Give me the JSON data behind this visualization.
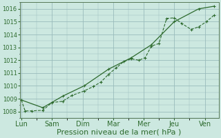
{
  "bg_color": "#cce8e0",
  "plot_bg_color": "#cce8e0",
  "grid_color": "#99bbbb",
  "line_color": "#2d6a2d",
  "xlabel": "Pression niveau de la mer( hPa )",
  "xlabel_fontsize": 8,
  "tick_labels": [
    "Lun",
    "Sam",
    "Dim",
    "Mar",
    "Mer",
    "Jeu",
    "Ven"
  ],
  "tick_positions": [
    0,
    1,
    2,
    3,
    4,
    5,
    6
  ],
  "ylim": [
    1007.5,
    1016.5
  ],
  "yticks": [
    1008,
    1009,
    1010,
    1011,
    1012,
    1013,
    1014,
    1015,
    1016
  ],
  "xlim": [
    -0.05,
    6.45
  ],
  "line1_x": [
    0.0,
    0.12,
    0.35,
    0.7,
    1.0,
    1.35,
    1.65,
    2.05,
    2.35,
    2.6,
    2.85,
    3.1,
    3.35,
    3.6,
    3.85,
    4.05,
    4.25,
    4.5,
    4.75,
    5.0,
    5.25,
    5.55,
    5.8,
    6.05,
    6.3
  ],
  "line1_y": [
    1008.9,
    1008.05,
    1008.05,
    1008.1,
    1008.7,
    1008.8,
    1009.25,
    1009.6,
    1009.95,
    1010.3,
    1010.9,
    1011.4,
    1011.9,
    1012.1,
    1012.0,
    1012.2,
    1013.1,
    1013.3,
    1015.25,
    1015.3,
    1014.85,
    1014.4,
    1014.6,
    1015.0,
    1015.5
  ],
  "line2_x": [
    0.0,
    0.7,
    1.35,
    2.05,
    2.85,
    3.6,
    4.25,
    5.0,
    5.8,
    6.3
  ],
  "line2_y": [
    1008.9,
    1008.3,
    1009.2,
    1010.0,
    1011.3,
    1012.2,
    1013.2,
    1015.0,
    1016.0,
    1016.2
  ]
}
